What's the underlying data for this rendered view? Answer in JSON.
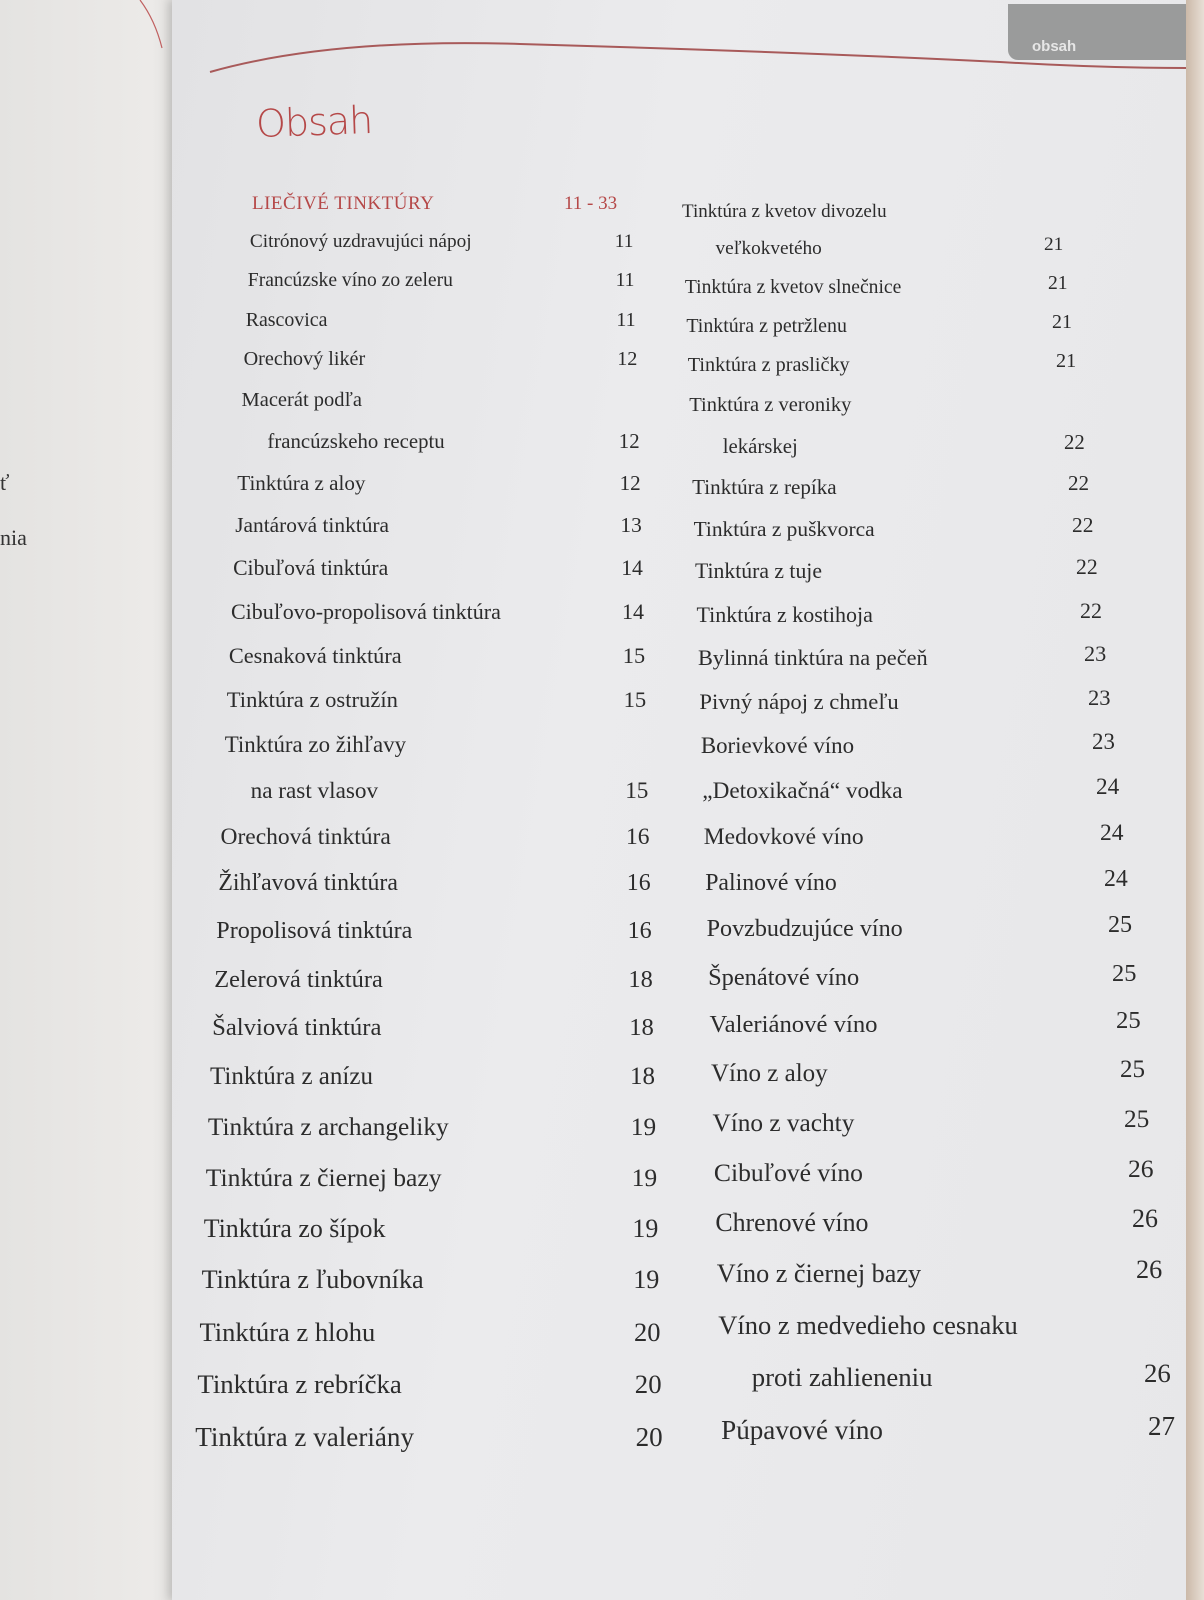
{
  "header_tab": "obsah",
  "title": "Obsah",
  "left_page_fragments": [
    "ť",
    "nia"
  ],
  "colors": {
    "accent": "#b54848",
    "tab": "#9a9b9b"
  },
  "left_column": [
    {
      "text": "LIEČIVÉ TINKTÚRY",
      "page": "11 - 33",
      "section": true
    },
    {
      "text": "Citrónový uzdravujúci nápoj",
      "page": "11"
    },
    {
      "text": "Francúzske víno zo zeleru",
      "page": "11"
    },
    {
      "text": "Rascovica",
      "page": "11"
    },
    {
      "text": "Orechový likér",
      "page": "12"
    },
    {
      "text": "Macerát podľa",
      "page": ""
    },
    {
      "text": "francúzskeho receptu",
      "page": "12",
      "indent": true
    },
    {
      "text": "Tinktúra z aloy",
      "page": "12"
    },
    {
      "text": "Jantárová tinktúra",
      "page": "13"
    },
    {
      "text": "Cibuľová tinktúra",
      "page": "14"
    },
    {
      "text": "Cibuľovo-propolisová tinktúra",
      "page": "14"
    },
    {
      "text": "Cesnaková tinktúra",
      "page": "15"
    },
    {
      "text": "Tinktúra z ostružín",
      "page": "15"
    },
    {
      "text": "Tinktúra zo žihľavy",
      "page": ""
    },
    {
      "text": "na rast vlasov",
      "page": "15",
      "indent": true
    },
    {
      "text": "Orechová tinktúra",
      "page": "16"
    },
    {
      "text": "Žihľavová tinktúra",
      "page": "16"
    },
    {
      "text": "Propolisová tinktúra",
      "page": "16"
    },
    {
      "text": "Zelerová tinktúra",
      "page": "18"
    },
    {
      "text": "Šalviová tinktúra",
      "page": "18"
    },
    {
      "text": "Tinktúra z anízu",
      "page": "18"
    },
    {
      "text": "Tinktúra z archangeliky",
      "page": "19"
    },
    {
      "text": "Tinktúra z čiernej bazy",
      "page": "19"
    },
    {
      "text": "Tinktúra zo šípok",
      "page": "19"
    },
    {
      "text": "Tinktúra z ľubovníka",
      "page": "19"
    },
    {
      "text": "Tinktúra z hlohu",
      "page": "20"
    },
    {
      "text": "Tinktúra z rebríčka",
      "page": "20"
    },
    {
      "text": "Tinktúra z valeriány",
      "page": "20"
    }
  ],
  "right_column": [
    {
      "text": "Tinktúra z kvetov divozelu",
      "page": ""
    },
    {
      "text": "veľkokvetého",
      "page": "21",
      "indent": true
    },
    {
      "text": "Tinktúra z kvetov slnečnice",
      "page": "21"
    },
    {
      "text": "Tinktúra z petržlenu",
      "page": "21"
    },
    {
      "text": "Tinktúra z prasličky",
      "page": "21"
    },
    {
      "text": "Tinktúra z veroniky",
      "page": ""
    },
    {
      "text": "lekárskej",
      "page": "22",
      "indent": true
    },
    {
      "text": "Tinktúra z repíka",
      "page": "22"
    },
    {
      "text": "Tinktúra z puškvorca",
      "page": "22"
    },
    {
      "text": "Tinktúra z tuje",
      "page": "22"
    },
    {
      "text": "Tinktúra z kostihoja",
      "page": "22"
    },
    {
      "text": "Bylinná tinktúra na pečeň",
      "page": "23"
    },
    {
      "text": "Pivný nápoj z chmeľu",
      "page": "23"
    },
    {
      "text": "Borievkové víno",
      "page": "23"
    },
    {
      "text": "„Detoxikačná“ vodka",
      "page": "24"
    },
    {
      "text": "Medovkové víno",
      "page": "24"
    },
    {
      "text": "Palinové víno",
      "page": "24"
    },
    {
      "text": "Povzbudzujúce víno",
      "page": "25"
    },
    {
      "text": "Špenátové víno",
      "page": "25"
    },
    {
      "text": "Valeriánové víno",
      "page": "25"
    },
    {
      "text": "Víno z aloy",
      "page": "25"
    },
    {
      "text": "Víno z vachty",
      "page": "25"
    },
    {
      "text": "Cibuľové víno",
      "page": "26"
    },
    {
      "text": "Chrenové víno",
      "page": "26"
    },
    {
      "text": "Víno z čiernej bazy",
      "page": "26"
    },
    {
      "text": "Víno z medvedieho cesnaku",
      "page": ""
    },
    {
      "text": "proti zahlieneniu",
      "page": "26",
      "indent": true
    },
    {
      "text": "Púpavové víno",
      "page": "27"
    }
  ]
}
